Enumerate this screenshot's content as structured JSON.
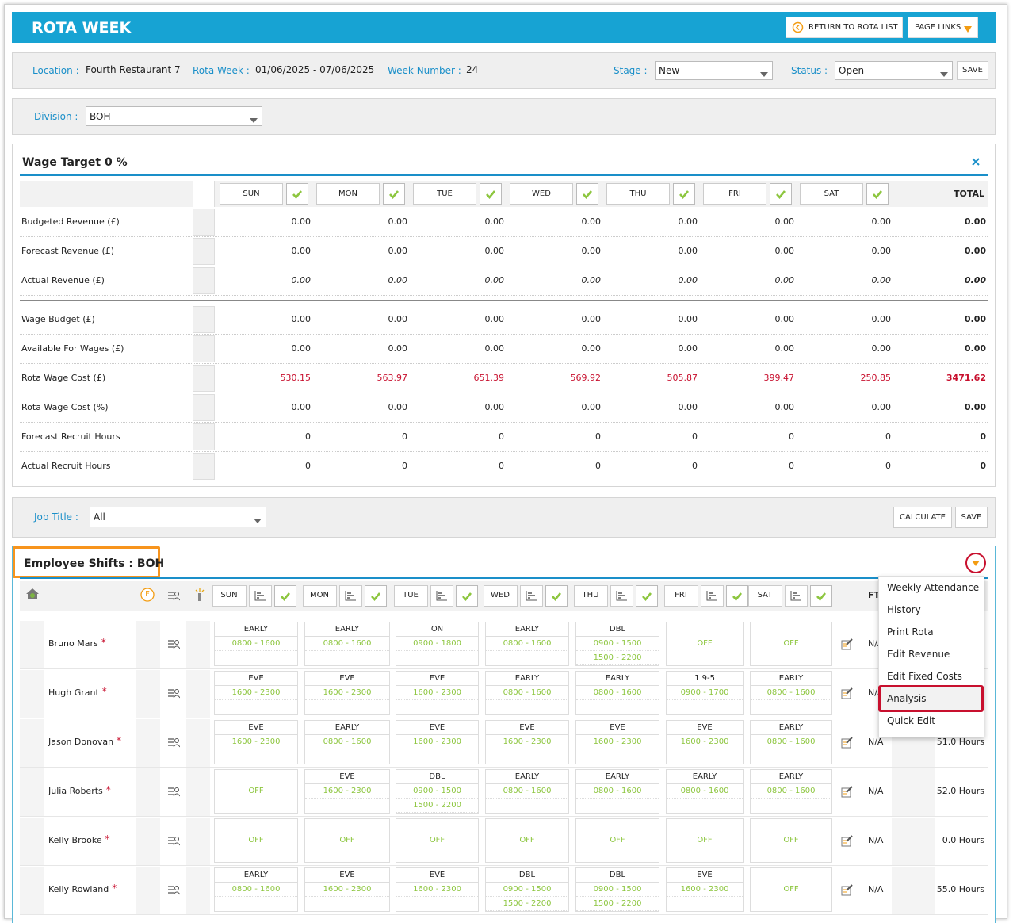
{
  "header": {
    "title": "ROTA WEEK",
    "buttons": [
      "RETURN TO ROTA LIST",
      "PAGE LINKS"
    ]
  },
  "info": {
    "fields": [
      {
        "label": "Location :",
        "value": "Fourth Restaurant 7"
      },
      {
        "label": "Rota Week :",
        "value": "01/06/2025 - 07/06/2025"
      },
      {
        "label": "Week Number :",
        "value": "24"
      }
    ],
    "stage": {
      "label": "Stage :",
      "value": "New"
    },
    "status": {
      "label": "Status :",
      "value": "Open"
    },
    "save": "SAVE"
  },
  "division": {
    "label": "Division :",
    "value": "BOH"
  },
  "wage_target": {
    "title": "Wage Target 0 %",
    "days": [
      "SUN",
      "MON",
      "TUE",
      "WED",
      "THU",
      "FRI",
      "SAT"
    ],
    "total_label": "TOTAL",
    "rows": [
      {
        "label": "Budgeted Revenue (£)",
        "values": [
          "0.00",
          "0.00",
          "0.00",
          "0.00",
          "0.00",
          "0.00",
          "0.00"
        ],
        "total": "0.00"
      },
      {
        "label": "Forecast Revenue (£)",
        "values": [
          "0.00",
          "0.00",
          "0.00",
          "0.00",
          "0.00",
          "0.00",
          "0.00"
        ],
        "total": "0.00"
      },
      {
        "label": "Actual Revenue (£)",
        "values": [
          "0.00",
          "0.00",
          "0.00",
          "0.00",
          "0.00",
          "0.00",
          "0.00"
        ],
        "total": "0.00",
        "italic": true
      },
      {
        "label": "Wage Budget (£)",
        "values": [
          "0.00",
          "0.00",
          "0.00",
          "0.00",
          "0.00",
          "0.00",
          "0.00"
        ],
        "total": "0.00"
      },
      {
        "label": "Available For Wages (£)",
        "values": [
          "0.00",
          "0.00",
          "0.00",
          "0.00",
          "0.00",
          "0.00",
          "0.00"
        ],
        "total": "0.00"
      },
      {
        "label": "Rota Wage Cost (£)",
        "values": [
          "530.15",
          "563.97",
          "651.39",
          "569.92",
          "505.87",
          "399.47",
          "250.85"
        ],
        "total": "3471.62",
        "color": "#c8102e"
      },
      {
        "label": "Rota Wage Cost (%)",
        "values": [
          "0.00",
          "0.00",
          "0.00",
          "0.00",
          "0.00",
          "0.00",
          "0.00"
        ],
        "total": "0.00"
      },
      {
        "label": "Forecast Recruit Hours",
        "values": [
          "0",
          "0",
          "0",
          "0",
          "0",
          "0",
          "0"
        ],
        "total": "0"
      },
      {
        "label": "Actual Recruit Hours",
        "values": [
          "0",
          "0",
          "0",
          "0",
          "0",
          "0",
          "0"
        ],
        "total": "0"
      }
    ]
  },
  "job": {
    "label": "Job Title :",
    "value": "All",
    "buttons": [
      "CALCULATE",
      "SAVE"
    ]
  },
  "shifts": {
    "title": "Employee Shifts : BOH",
    "f_icon": "F",
    "days": [
      "SUN",
      "MON",
      "TUE",
      "WED",
      "THU",
      "FRI",
      "SAT"
    ],
    "column": "FT",
    "required_mark": "*",
    "employees": [
      {
        "name": "Bruno Mars",
        "shifts": [
          {
            "code": "EARLY",
            "times": [
              "0800 - 1600"
            ]
          },
          {
            "code": "EARLY",
            "times": [
              "0800 - 1600"
            ]
          },
          {
            "code": "ON",
            "times": [
              "0900 - 1800"
            ]
          },
          {
            "code": "EARLY",
            "times": [
              "0800 - 1600"
            ]
          },
          {
            "code": "DBL",
            "times": [
              "0900 - 1500",
              "1500 - 2200"
            ]
          },
          "OFF",
          "OFF"
        ],
        "ft": "N/A"
      },
      {
        "name": "Hugh Grant",
        "shifts": [
          {
            "code": "EVE",
            "times": [
              "1600 - 2300"
            ]
          },
          {
            "code": "EVE",
            "times": [
              "1600 - 2300"
            ]
          },
          {
            "code": "EVE",
            "times": [
              "1600 - 2300"
            ]
          },
          {
            "code": "EARLY",
            "times": [
              "0800 - 1600"
            ]
          },
          {
            "code": "EARLY",
            "times": [
              "0800 - 1600"
            ]
          },
          {
            "code": "1 9-5",
            "times": [
              "0900 - 1700"
            ]
          },
          {
            "code": "EARLY",
            "times": [
              "0800 - 1600"
            ]
          }
        ],
        "ft": "N/A"
      },
      {
        "name": "Jason Donovan",
        "shifts": [
          {
            "code": "EVE",
            "times": [
              "1600 - 2300"
            ]
          },
          {
            "code": "EARLY",
            "times": [
              "0800 - 1600"
            ]
          },
          {
            "code": "EVE",
            "times": [
              "1600 - 2300"
            ]
          },
          {
            "code": "EVE",
            "times": [
              "1600 - 2300"
            ]
          },
          {
            "code": "EVE",
            "times": [
              "1600 - 2300"
            ]
          },
          {
            "code": "EVE",
            "times": [
              "1600 - 2300"
            ]
          },
          {
            "code": "EARLY",
            "times": [
              "0800 - 1600"
            ]
          }
        ],
        "ft": "N/A",
        "hours": "51.0 Hours"
      },
      {
        "name": "Julia Roberts",
        "shifts": [
          "OFF",
          {
            "code": "EVE",
            "times": [
              "1600 - 2300"
            ]
          },
          {
            "code": "DBL",
            "times": [
              "0900 - 1500",
              "1500 - 2200"
            ]
          },
          {
            "code": "EARLY",
            "times": [
              "0800 - 1600"
            ]
          },
          {
            "code": "EARLY",
            "times": [
              "0800 - 1600"
            ]
          },
          {
            "code": "EARLY",
            "times": [
              "0800 - 1600"
            ]
          },
          {
            "code": "EARLY",
            "times": [
              "0800 - 1600"
            ]
          }
        ],
        "ft": "N/A",
        "hours": "52.0 Hours"
      },
      {
        "name": "Kelly Brooke",
        "shifts": [
          "OFF",
          "OFF",
          "OFF",
          "OFF",
          "OFF",
          "OFF",
          "OFF"
        ],
        "ft": "N/A",
        "hours": "0.0 Hours"
      },
      {
        "name": "Kelly Rowland",
        "shifts": [
          {
            "code": "EARLY",
            "times": [
              "0800 - 1600"
            ]
          },
          {
            "code": "EVE",
            "times": [
              "1600 - 2300"
            ]
          },
          {
            "code": "EVE",
            "times": [
              "1600 - 2300"
            ]
          },
          {
            "code": "DBL",
            "times": [
              "0900 - 1500",
              "1500 - 2200"
            ]
          },
          {
            "code": "DBL",
            "times": [
              "0900 - 1500",
              "1500 - 2200"
            ]
          },
          {
            "code": "EVE",
            "times": [
              "1600 - 2300"
            ]
          },
          "OFF"
        ],
        "ft": "N/A",
        "hours": "55.0 Hours"
      }
    ]
  },
  "menu": {
    "items": [
      "Weekly Attendance",
      "History",
      "Print Rota",
      "Edit Revenue",
      "Edit Fixed Costs",
      "Analysis",
      "Quick Edit"
    ],
    "selected": 5
  }
}
